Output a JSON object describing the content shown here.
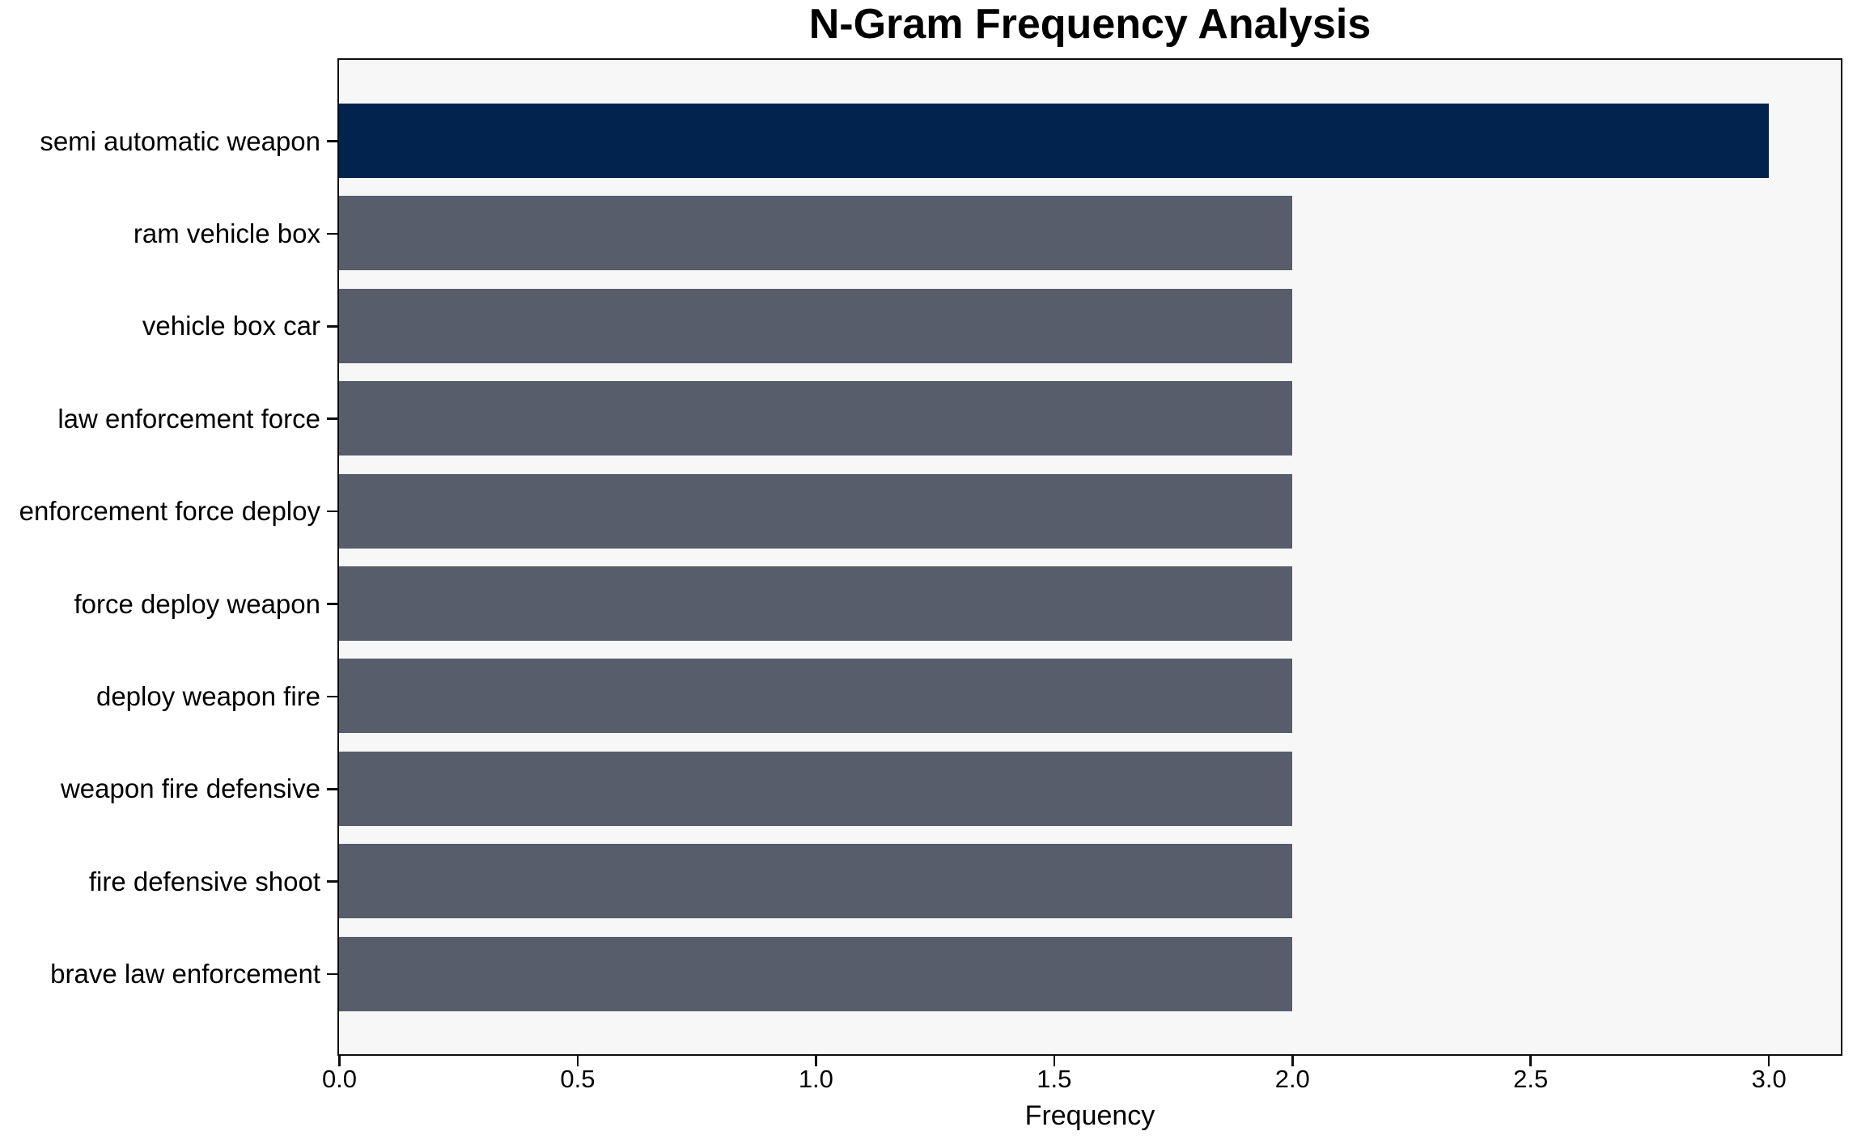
{
  "chart_data": {
    "type": "bar",
    "orientation": "horizontal",
    "title": "N-Gram Frequency Analysis",
    "xlabel": "Frequency",
    "ylabel": "",
    "categories": [
      "semi automatic weapon",
      "ram vehicle box",
      "vehicle box car",
      "law enforcement force",
      "enforcement force deploy",
      "force deploy weapon",
      "deploy weapon fire",
      "weapon fire defensive",
      "fire defensive shoot",
      "brave law enforcement"
    ],
    "values": [
      3,
      2,
      2,
      2,
      2,
      2,
      2,
      2,
      2,
      2
    ],
    "x_tick_values": [
      0.0,
      0.5,
      1.0,
      1.5,
      2.0,
      2.5,
      3.0
    ],
    "x_tick_labels": [
      "0.0",
      "0.5",
      "1.0",
      "1.5",
      "2.0",
      "2.5",
      "3.0"
    ],
    "xlim": [
      0,
      3.15
    ],
    "grid": false,
    "legend": null,
    "highlight_index": 0,
    "colors": {
      "highlight_bar": "#01234E",
      "default_bar": "#575D6B",
      "plot_background": "#F7F7F8",
      "figure_background": "#FFFFFF",
      "spine": "#0D0D0D",
      "text": "#000000"
    }
  }
}
